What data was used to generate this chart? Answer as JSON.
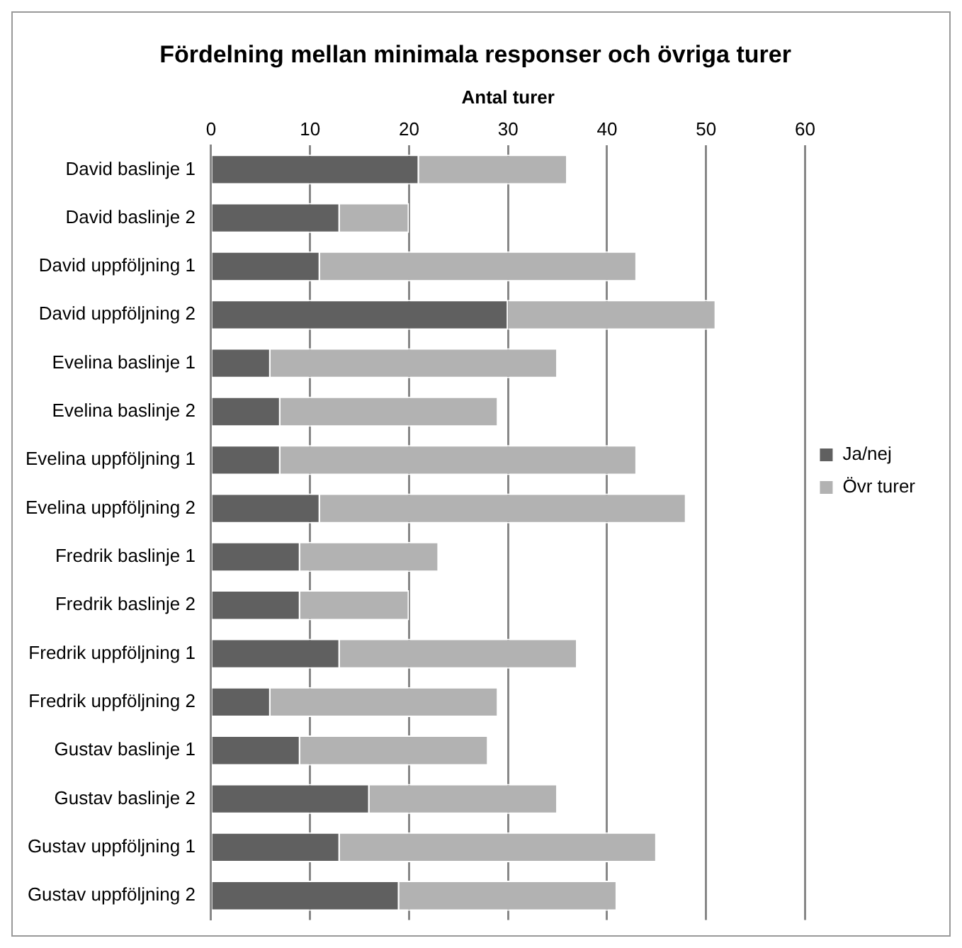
{
  "chart_data": {
    "type": "bar",
    "orientation": "horizontal",
    "stacked": true,
    "title": "Fördelning mellan minimala responser och övriga turer",
    "xlabel": "Antal turer",
    "categories": [
      "David baslinje 1",
      "David baslinje 2",
      "David uppföljning 1",
      "David uppföljning 2",
      "Evelina baslinje 1",
      "Evelina baslinje 2",
      "Evelina uppföljning 1",
      "Evelina uppföljning 2",
      "Fredrik baslinje 1",
      "Fredrik baslinje 2",
      "Fredrik uppföljning 1",
      "Fredrik uppföljning 2",
      "Gustav baslinje 1",
      "Gustav baslinje 2",
      "Gustav uppföljning 1",
      "Gustav uppföljning 2"
    ],
    "series": [
      {
        "name": "Ja/nej",
        "color": "#606060",
        "values": [
          21,
          13,
          11,
          30,
          6,
          7,
          7,
          11,
          9,
          9,
          13,
          6,
          9,
          16,
          13,
          19
        ]
      },
      {
        "name": "Övr turer",
        "color": "#b2b2b2",
        "values": [
          15,
          7,
          32,
          21,
          29,
          22,
          36,
          37,
          14,
          11,
          24,
          23,
          19,
          19,
          32,
          22
        ]
      }
    ],
    "xlim": [
      0,
      60
    ],
    "xticks": [
      0,
      10,
      20,
      30,
      40,
      50,
      60
    ],
    "grid": "x",
    "legend": "right"
  }
}
